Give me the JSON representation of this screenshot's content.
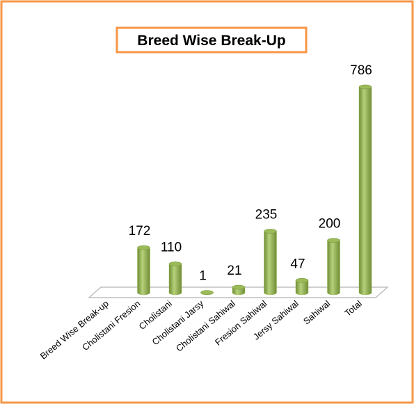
{
  "chart_data": {
    "type": "bar",
    "title": "Breed Wise Break-Up",
    "categories": [
      "Breed Wise Break-up",
      "Cholistani Fresion",
      "Cholistani",
      "Cholistani Jarsy",
      "Cholistani Sahiwal",
      "Fresion Sahiwal",
      "Jersy Sahiwal",
      "Sahiwal",
      "Total"
    ],
    "values": [
      null,
      172,
      110,
      1,
      21,
      235,
      47,
      200,
      786
    ],
    "color": "#9bbb59"
  }
}
